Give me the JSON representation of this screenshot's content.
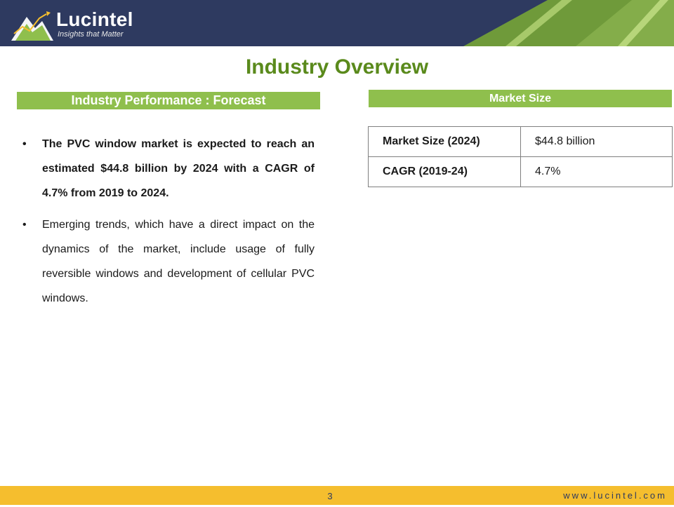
{
  "header": {
    "logo_name": "Lucintel",
    "logo_tagline": "Insights that Matter"
  },
  "page_title": "Industry Overview",
  "left": {
    "section_title": "Industry Performance : Forecast",
    "bullets": [
      "The PVC window market is expected to reach an estimated $44.8 billion by 2024 with a CAGR of 4.7% from 2019 to 2024.",
      "Emerging trends, which have a direct impact on the dynamics of the market, include usage of fully reversible windows and development of cellular PVC windows."
    ],
    "bullet_symbol": "•"
  },
  "right": {
    "section_title": "Market Size",
    "rows": [
      {
        "label": "Market Size (2024)",
        "value": "$44.8 billion"
      },
      {
        "label": "CAGR (2019-24)",
        "value": "4.7%"
      }
    ]
  },
  "footer": {
    "page_number": "3",
    "url": "www.lucintel.com"
  },
  "colors": {
    "header_bg": "#2e3a60",
    "accent_green": "#8fbf4d",
    "title_green": "#5a8a1c",
    "footer_bg": "#f5be2e"
  }
}
